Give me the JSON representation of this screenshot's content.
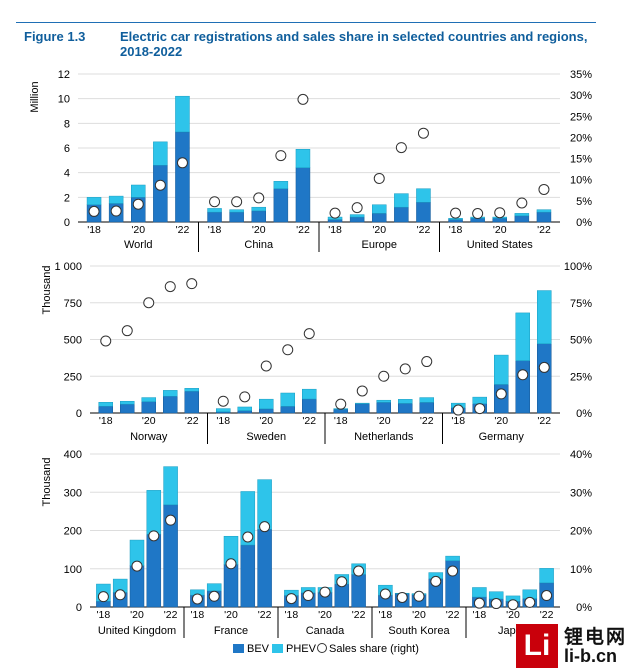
{
  "figure": {
    "number": "Figure 1.3",
    "title": "Electric car registrations and sales share in selected countries and regions, 2018-2022"
  },
  "colors": {
    "bev": "#1f77c6",
    "phev": "#2ec4ea",
    "share_fill": "#ffffff",
    "share_stroke": "#333333",
    "grid": "#dddddd",
    "axis": "#000000"
  },
  "chart_data": [
    {
      "type": "bar",
      "stacked": true,
      "panel": "top",
      "ylabel": "Million",
      "ylim": [
        0,
        12
      ],
      "yticks": [
        "0",
        "2",
        "4",
        "6",
        "8",
        "10",
        "12"
      ],
      "y2lim": [
        0,
        35
      ],
      "y2ticks": [
        "0%",
        "5%",
        "10%",
        "15%",
        "20%",
        "25%",
        "30%",
        "35%"
      ],
      "year_labels": [
        "'18",
        "'20",
        "'22"
      ],
      "groups": [
        {
          "name": "World",
          "bev": [
            1.4,
            1.5,
            2.0,
            4.6,
            7.3
          ],
          "phev": [
            0.6,
            0.6,
            1.0,
            1.9,
            2.9
          ],
          "share": [
            2.5,
            2.6,
            4.2,
            8.7,
            14
          ]
        },
        {
          "name": "China",
          "bev": [
            0.8,
            0.8,
            0.9,
            2.7,
            4.4
          ],
          "phev": [
            0.3,
            0.2,
            0.3,
            0.6,
            1.5
          ],
          "share": [
            4.8,
            4.8,
            5.7,
            15.7,
            29
          ]
        },
        {
          "name": "Europe",
          "bev": [
            0.2,
            0.4,
            0.7,
            1.2,
            1.6
          ],
          "phev": [
            0.2,
            0.2,
            0.7,
            1.1,
            1.1
          ],
          "share": [
            2.1,
            3.4,
            10.3,
            17.6,
            21
          ]
        },
        {
          "name": "United States",
          "bev": [
            0.2,
            0.3,
            0.3,
            0.5,
            0.8
          ],
          "phev": [
            0.1,
            0.1,
            0.1,
            0.2,
            0.2
          ],
          "share": [
            2.1,
            2.0,
            2.2,
            4.5,
            7.7
          ]
        }
      ]
    },
    {
      "type": "bar",
      "stacked": true,
      "panel": "middle",
      "ylabel": "Thousand",
      "ylim": [
        0,
        1000
      ],
      "yticks": [
        "0",
        "250",
        "500",
        "750",
        "1 000"
      ],
      "y2lim": [
        0,
        100
      ],
      "y2ticks": [
        "0%",
        "25%",
        "50%",
        "75%",
        "100%"
      ],
      "year_labels": [
        "'18",
        "'20",
        "'22"
      ],
      "groups": [
        {
          "name": "Norway",
          "bev": [
            46,
            60,
            77,
            114,
            148
          ],
          "phev": [
            27,
            20,
            28,
            40,
            20
          ],
          "share": [
            49,
            56,
            75,
            86,
            88
          ]
        },
        {
          "name": "Sweden",
          "bev": [
            8,
            16,
            28,
            45,
            95
          ],
          "phev": [
            22,
            25,
            66,
            91,
            67
          ],
          "share": [
            8,
            11,
            32,
            43,
            54
          ]
        },
        {
          "name": "Netherlands",
          "bev": [
            25,
            62,
            72,
            65,
            72
          ],
          "phev": [
            5,
            5,
            15,
            28,
            33
          ],
          "share": [
            6,
            15,
            25,
            30,
            35
          ]
        },
        {
          "name": "Germany",
          "bev": [
            36,
            63,
            194,
            356,
            471
          ],
          "phev": [
            31,
            45,
            200,
            325,
            362
          ],
          "share": [
            2,
            3,
            13,
            26,
            31
          ]
        }
      ]
    },
    {
      "type": "bar",
      "stacked": true,
      "panel": "bottom",
      "ylabel": "Thousand",
      "ylim": [
        0,
        400
      ],
      "yticks": [
        "0",
        "100",
        "200",
        "300",
        "400"
      ],
      "y2lim": [
        0,
        40
      ],
      "y2ticks": [
        "0%",
        "10%",
        "20%",
        "30%",
        "40%"
      ],
      "year_labels": [
        "'18",
        "'20",
        "'22"
      ],
      "groups": [
        {
          "name": "United Kingdom",
          "bev": [
            15,
            38,
            108,
            190,
            267
          ],
          "phev": [
            45,
            35,
            67,
            115,
            100
          ],
          "share": [
            2.7,
            3.2,
            10.7,
            18.6,
            22.7
          ]
        },
        {
          "name": "France",
          "bev": [
            31,
            42,
            111,
            162,
            203
          ],
          "phev": [
            14,
            19,
            74,
            140,
            130
          ],
          "share": [
            2.1,
            2.8,
            11.3,
            18.3,
            21.0
          ]
        },
        {
          "name": "Canada",
          "bev": [
            30,
            37,
            38,
            60,
            85
          ],
          "phev": [
            14,
            14,
            13,
            25,
            28
          ],
          "share": [
            2.2,
            3.0,
            3.9,
            6.6,
            9.4
          ]
        },
        {
          "name": "South Korea",
          "bev": [
            31,
            35,
            32,
            74,
            121
          ],
          "phev": [
            26,
            1,
            3,
            16,
            12
          ],
          "share": [
            3.4,
            2.5,
            2.8,
            6.7,
            9.4
          ]
        },
        {
          "name": "Japan",
          "bev": [
            26,
            21,
            15,
            22,
            63
          ],
          "phev": [
            25,
            19,
            14,
            23,
            38
          ],
          "share": [
            1.0,
            0.9,
            0.6,
            1.2,
            3.0
          ]
        }
      ]
    }
  ],
  "legend": {
    "bev": "BEV",
    "phev": "PHEV",
    "share": "Sales share (right)"
  },
  "watermark": {
    "box_letter": "Li",
    "top": "锂电网",
    "bottom": "li-b.cn"
  }
}
